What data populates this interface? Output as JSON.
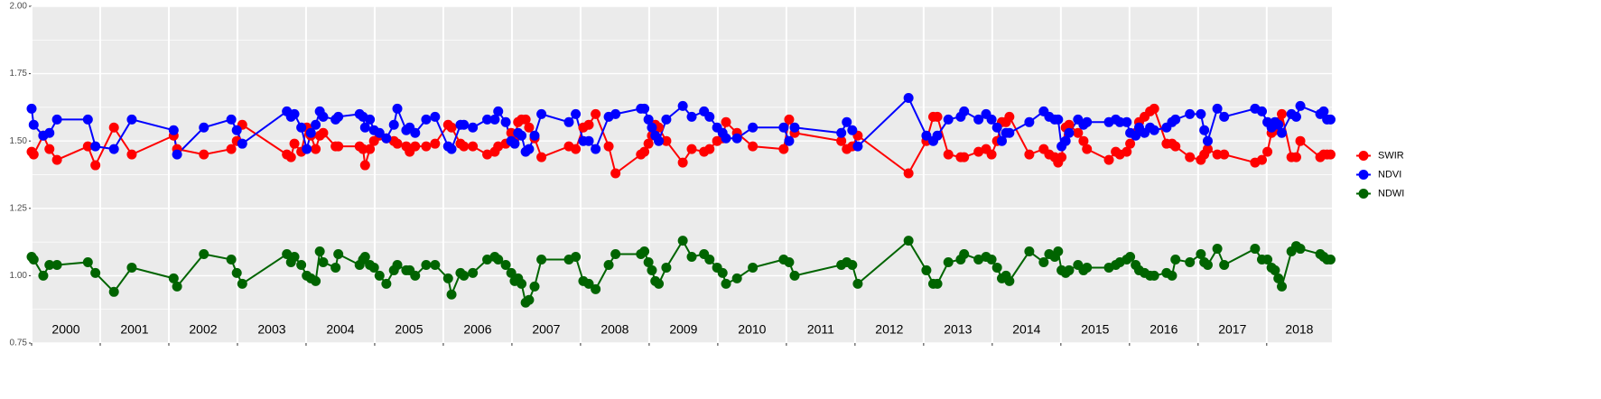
{
  "chart_data": {
    "type": "line",
    "xlim": [
      2000,
      2018.95
    ],
    "xticks": [
      2000,
      2001,
      2002,
      2003,
      2004,
      2005,
      2006,
      2007,
      2008,
      2009,
      2010,
      2011,
      2012,
      2013,
      2014,
      2015,
      2016,
      2017,
      2018
    ],
    "year_labels": [
      "2000",
      "2001",
      "2002",
      "2003",
      "2004",
      "2005",
      "2006",
      "2007",
      "2008",
      "2009",
      "2010",
      "2011",
      "2012",
      "2013",
      "2014",
      "2015",
      "2016",
      "2017",
      "2018"
    ],
    "ylim": [
      0.75,
      2.0
    ],
    "yticks": [
      0.75,
      {
        "value": 1.0,
        "label": "1.00"
      },
      1.25,
      {
        "value": 1.5,
        "label": "1.50"
      },
      1.75,
      {
        "value": 2.0,
        "label": "2.00"
      }
    ],
    "grid": true,
    "legend": "right",
    "x": [
      2000.0,
      2000.03,
      2000.17,
      2000.26,
      2000.37,
      2000.82,
      2000.93,
      2001.2,
      2001.46,
      2002.07,
      2002.12,
      2002.51,
      2002.91,
      2002.99,
      2003.07,
      2003.72,
      2003.78,
      2003.83,
      2003.93,
      2004.01,
      2004.07,
      2004.14,
      2004.2,
      2004.25,
      2004.43,
      2004.47,
      2004.78,
      2004.83,
      2004.86,
      2004.93,
      2004.99,
      2005.07,
      2005.17,
      2005.28,
      2005.33,
      2005.46,
      2005.51,
      2005.59,
      2005.75,
      2005.88,
      2006.07,
      2006.12,
      2006.25,
      2006.3,
      2006.43,
      2006.64,
      2006.75,
      2006.8,
      2006.91,
      2006.99,
      2007.04,
      2007.09,
      2007.14,
      2007.2,
      2007.25,
      2007.33,
      2007.43,
      2007.83,
      2007.93,
      2008.04,
      2008.12,
      2008.22,
      2008.41,
      2008.51,
      2008.88,
      2008.93,
      2008.99,
      2009.04,
      2009.09,
      2009.14,
      2009.25,
      2009.49,
      2009.62,
      2009.8,
      2009.88,
      2009.99,
      2010.07,
      2010.12,
      2010.28,
      2010.51,
      2010.96,
      2011.04,
      2011.12,
      2011.8,
      2011.88,
      2011.96,
      2012.04,
      2012.78,
      2013.04,
      2013.14,
      2013.2,
      2013.36,
      2013.54,
      2013.59,
      2013.8,
      2013.91,
      2013.99,
      2014.07,
      2014.14,
      2014.2,
      2014.25,
      2014.54,
      2014.75,
      2014.83,
      2014.91,
      2014.96,
      2015.01,
      2015.07,
      2015.12,
      2015.25,
      2015.33,
      2015.38,
      2015.7,
      2015.8,
      2015.86,
      2015.96,
      2016.01,
      2016.09,
      2016.14,
      2016.22,
      2016.3,
      2016.36,
      2016.54,
      2016.62,
      2016.67,
      2016.88,
      2017.04,
      2017.09,
      2017.14,
      2017.28,
      2017.38,
      2017.83,
      2017.93,
      2018.01,
      2018.07,
      2018.12,
      2018.17,
      2018.22,
      2018.36,
      2018.43,
      2018.49,
      2018.78,
      2018.83,
      2018.88,
      2018.93
    ],
    "series": [
      {
        "name": "SWIR",
        "color": "#ff0000",
        "values": [
          1.46,
          1.45,
          1.52,
          1.47,
          1.43,
          1.48,
          1.41,
          1.55,
          1.45,
          1.52,
          1.47,
          1.45,
          1.47,
          1.5,
          1.56,
          1.45,
          1.44,
          1.49,
          1.46,
          1.55,
          1.52,
          1.47,
          1.52,
          1.53,
          1.48,
          1.48,
          1.48,
          1.47,
          1.41,
          1.47,
          1.5,
          1.52,
          1.51,
          1.5,
          1.49,
          1.48,
          1.46,
          1.48,
          1.48,
          1.49,
          1.56,
          1.55,
          1.49,
          1.48,
          1.48,
          1.45,
          1.46,
          1.48,
          1.49,
          1.53,
          1.51,
          1.57,
          1.58,
          1.58,
          1.55,
          1.51,
          1.44,
          1.48,
          1.47,
          1.55,
          1.56,
          1.6,
          1.48,
          1.38,
          1.45,
          1.46,
          1.49,
          1.52,
          1.56,
          1.55,
          1.5,
          1.42,
          1.47,
          1.46,
          1.47,
          1.5,
          1.51,
          1.57,
          1.53,
          1.48,
          1.47,
          1.58,
          1.53,
          1.5,
          1.47,
          1.48,
          1.52,
          1.38,
          1.5,
          1.59,
          1.59,
          1.45,
          1.44,
          1.44,
          1.46,
          1.47,
          1.45,
          1.5,
          1.57,
          1.57,
          1.59,
          1.45,
          1.47,
          1.45,
          1.44,
          1.42,
          1.44,
          1.55,
          1.56,
          1.53,
          1.5,
          1.47,
          1.43,
          1.46,
          1.45,
          1.46,
          1.49,
          1.53,
          1.57,
          1.59,
          1.61,
          1.62,
          1.49,
          1.49,
          1.48,
          1.44,
          1.43,
          1.45,
          1.47,
          1.45,
          1.45,
          1.42,
          1.43,
          1.46,
          1.53,
          1.54,
          1.57,
          1.6,
          1.44,
          1.44,
          1.5,
          1.44,
          1.45,
          1.45,
          1.45
        ]
      },
      {
        "name": "NDVI",
        "color": "#0000ff",
        "values": [
          1.62,
          1.56,
          1.52,
          1.53,
          1.58,
          1.58,
          1.48,
          1.47,
          1.58,
          1.54,
          1.45,
          1.55,
          1.58,
          1.54,
          1.49,
          1.61,
          1.59,
          1.6,
          1.55,
          1.47,
          1.53,
          1.56,
          1.61,
          1.59,
          1.58,
          1.59,
          1.6,
          1.59,
          1.55,
          1.58,
          1.54,
          1.53,
          1.51,
          1.56,
          1.62,
          1.54,
          1.55,
          1.53,
          1.58,
          1.59,
          1.48,
          1.47,
          1.56,
          1.56,
          1.55,
          1.58,
          1.58,
          1.61,
          1.57,
          1.5,
          1.49,
          1.53,
          1.52,
          1.46,
          1.47,
          1.52,
          1.6,
          1.57,
          1.6,
          1.5,
          1.5,
          1.47,
          1.59,
          1.6,
          1.62,
          1.62,
          1.58,
          1.55,
          1.52,
          1.5,
          1.58,
          1.63,
          1.59,
          1.61,
          1.59,
          1.55,
          1.53,
          1.51,
          1.51,
          1.55,
          1.55,
          1.5,
          1.55,
          1.53,
          1.57,
          1.54,
          1.48,
          1.66,
          1.52,
          1.5,
          1.52,
          1.58,
          1.59,
          1.61,
          1.58,
          1.6,
          1.58,
          1.55,
          1.5,
          1.53,
          1.53,
          1.57,
          1.61,
          1.59,
          1.58,
          1.58,
          1.48,
          1.5,
          1.53,
          1.58,
          1.56,
          1.57,
          1.57,
          1.58,
          1.57,
          1.57,
          1.53,
          1.52,
          1.55,
          1.53,
          1.55,
          1.54,
          1.55,
          1.57,
          1.58,
          1.6,
          1.6,
          1.54,
          1.5,
          1.62,
          1.59,
          1.62,
          1.61,
          1.57,
          1.55,
          1.57,
          1.56,
          1.53,
          1.6,
          1.59,
          1.63,
          1.6,
          1.61,
          1.58,
          1.58
        ]
      },
      {
        "name": "NDWI",
        "color": "#006400",
        "values": [
          1.07,
          1.06,
          1.0,
          1.04,
          1.04,
          1.05,
          1.01,
          0.94,
          1.03,
          0.99,
          0.96,
          1.08,
          1.06,
          1.01,
          0.97,
          1.08,
          1.05,
          1.07,
          1.04,
          1.0,
          0.99,
          0.98,
          1.09,
          1.05,
          1.03,
          1.08,
          1.04,
          1.06,
          1.07,
          1.04,
          1.03,
          1.0,
          0.97,
          1.02,
          1.04,
          1.02,
          1.02,
          1.0,
          1.04,
          1.04,
          0.99,
          0.93,
          1.01,
          1.0,
          1.01,
          1.06,
          1.07,
          1.06,
          1.04,
          1.01,
          0.98,
          0.99,
          0.97,
          0.9,
          0.91,
          0.96,
          1.06,
          1.06,
          1.07,
          0.98,
          0.97,
          0.95,
          1.04,
          1.08,
          1.08,
          1.09,
          1.05,
          1.02,
          0.98,
          0.97,
          1.03,
          1.13,
          1.07,
          1.08,
          1.06,
          1.03,
          1.01,
          0.97,
          0.99,
          1.03,
          1.06,
          1.05,
          1.0,
          1.04,
          1.05,
          1.04,
          0.97,
          1.13,
          1.02,
          0.97,
          0.97,
          1.05,
          1.06,
          1.08,
          1.06,
          1.07,
          1.06,
          1.03,
          0.99,
          1.0,
          0.98,
          1.09,
          1.05,
          1.08,
          1.07,
          1.09,
          1.02,
          1.01,
          1.02,
          1.04,
          1.02,
          1.03,
          1.03,
          1.04,
          1.05,
          1.06,
          1.07,
          1.04,
          1.02,
          1.01,
          1.0,
          1.0,
          1.01,
          1.0,
          1.06,
          1.05,
          1.08,
          1.05,
          1.04,
          1.1,
          1.04,
          1.1,
          1.06,
          1.06,
          1.03,
          1.02,
          0.99,
          0.96,
          1.09,
          1.11,
          1.1,
          1.08,
          1.07,
          1.06,
          1.06
        ]
      }
    ]
  }
}
